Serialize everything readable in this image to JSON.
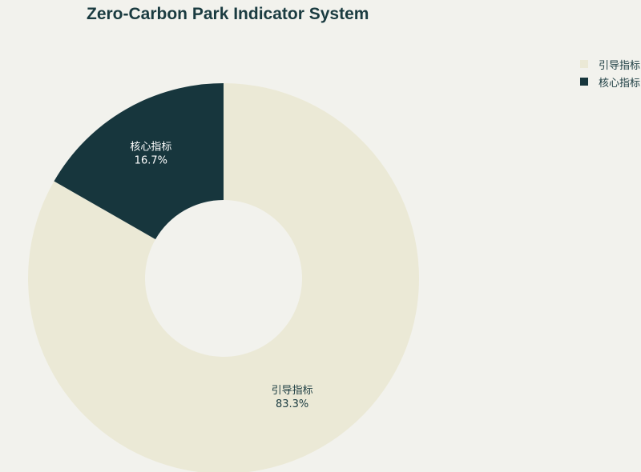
{
  "chart_data": {
    "type": "pie",
    "title": "Zero-Carbon Park Indicator System",
    "donut": true,
    "legend_position": "top-right",
    "slices": [
      {
        "label": "引导指标",
        "value": 83.3,
        "value_label": "83.3%",
        "color": "#ebe9d6",
        "text_color": "#1a3b40"
      },
      {
        "label": "核心指标",
        "value": 16.7,
        "value_label": "16.7%",
        "color": "#17363d",
        "text_color": "#ffffff"
      }
    ],
    "legend": [
      "引导指标",
      "核心指标"
    ]
  }
}
